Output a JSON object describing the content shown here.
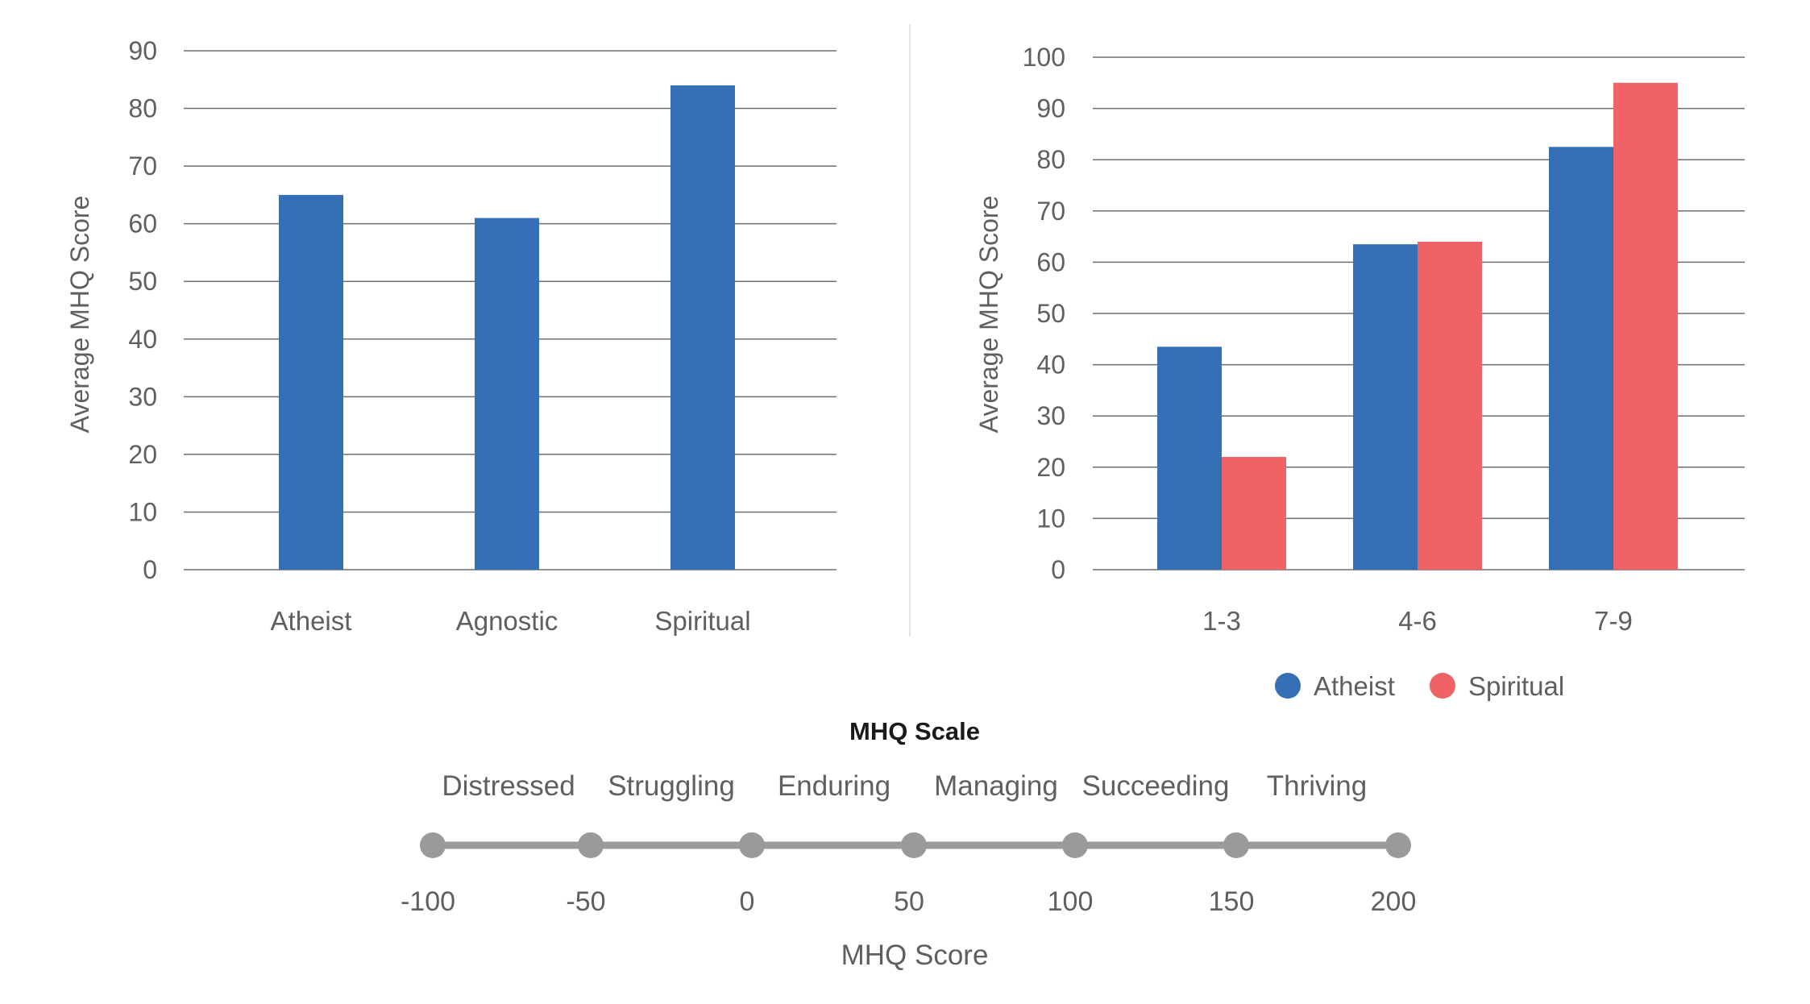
{
  "colors": {
    "atheist": "#356fb6",
    "spiritual": "#ef6265",
    "grid": "#6f6f6f",
    "scale_line": "#9a9a9a",
    "scale_dot": "#9a9a9a"
  },
  "chart_data": [
    {
      "type": "bar",
      "title": "",
      "xlabel": "",
      "ylabel": "Average MHQ Score",
      "ylim": [
        0,
        90
      ],
      "yticks": [
        0,
        10,
        20,
        30,
        40,
        50,
        60,
        70,
        80,
        90
      ],
      "grid": true,
      "categories": [
        "Atheist",
        "Agnostic",
        "Spiritual"
      ],
      "series": [
        {
          "values": [
            65,
            61,
            84
          ],
          "color": "#356fb6"
        }
      ]
    },
    {
      "type": "bar",
      "title": "",
      "xlabel": "",
      "ylabel": "Average MHQ Score",
      "ylim": [
        0,
        100
      ],
      "yticks": [
        0,
        10,
        20,
        30,
        40,
        50,
        60,
        70,
        80,
        90,
        100
      ],
      "grid": true,
      "legend": "bottom",
      "categories": [
        "1-3",
        "4-6",
        "7-9"
      ],
      "series": [
        {
          "name": "Atheist",
          "values": [
            43.5,
            63.5,
            82.5
          ],
          "color": "#356fb6"
        },
        {
          "name": "Spiritual",
          "values": [
            22,
            64,
            95
          ],
          "color": "#ef6265"
        }
      ]
    }
  ],
  "scale": {
    "title": "MHQ Scale",
    "labels": [
      "Distressed",
      "Struggling",
      "Enduring",
      "Managing",
      "Succeeding",
      "Thriving"
    ],
    "ticks": [
      "-100",
      "-50",
      "0",
      "50",
      "100",
      "150",
      "200"
    ],
    "axis_title": "MHQ Score"
  }
}
